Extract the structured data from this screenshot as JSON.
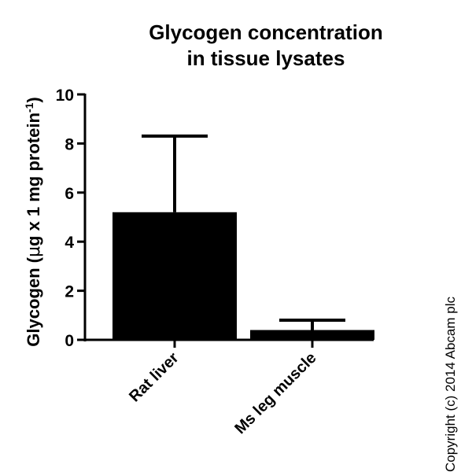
{
  "chart_data": {
    "type": "bar",
    "title_lines": [
      "Glycogen concentration",
      "in tissue lysates"
    ],
    "ylabel_prefix": "Glycogen (",
    "ylabel_greek": "μ",
    "ylabel_mid": "g x 1 mg protein",
    "ylabel_sup": "-1",
    "ylabel_suffix": ")",
    "xlabel": "",
    "categories": [
      "Rat liver",
      "Ms leg muscle"
    ],
    "values": [
      5.2,
      0.4
    ],
    "error_upper": [
      8.3,
      0.8
    ],
    "ylim": [
      0,
      10
    ],
    "yticks": [
      0,
      2,
      4,
      6,
      8,
      10
    ],
    "ytick_labels": [
      "0",
      "2",
      "4",
      "6",
      "8",
      "10"
    ],
    "grid": false,
    "bar_color": "#000000"
  },
  "copyright": "Copyright (c) 2014 Abcam plc"
}
